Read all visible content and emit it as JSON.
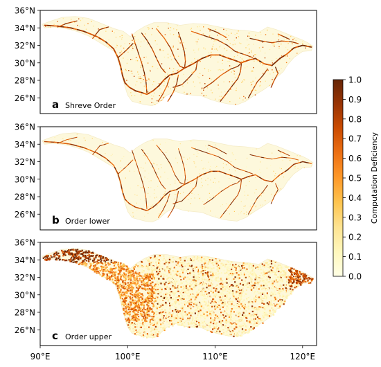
{
  "chart_data": {
    "type": "heatmap",
    "x_ticks": [
      90,
      100,
      110,
      120
    ],
    "x_tick_labels": [
      "90°E",
      "100°E",
      "110°E",
      "120°E"
    ],
    "xlim": [
      90,
      121.6
    ],
    "ylim": [
      24.2,
      36
    ],
    "y_ticks": [
      26,
      28,
      30,
      32,
      34,
      36
    ],
    "y_tick_labels": [
      "26°N",
      "28°N",
      "30°N",
      "32°N",
      "34°N",
      "36°N"
    ],
    "panels": [
      {
        "letter": "a",
        "label": "Shreve Order",
        "pattern": "rivers-strong"
      },
      {
        "letter": "b",
        "label": "Order lower",
        "pattern": "rivers-thin"
      },
      {
        "letter": "c",
        "label": "Order upper",
        "pattern": "upper-dense"
      }
    ],
    "colorbar": {
      "label": "Computation Deficiency",
      "min": 0.0,
      "max": 1.0,
      "ticks": [
        0.0,
        0.1,
        0.2,
        0.3,
        0.4,
        0.5,
        0.6,
        0.7,
        0.8,
        0.9,
        1.0
      ],
      "tick_labels": [
        "0.0",
        "0.1",
        "0.2",
        "0.3",
        "0.4",
        "0.5",
        "0.6",
        "0.7",
        "0.8",
        "0.9",
        "1.0"
      ],
      "colormap": "YlOrBr",
      "colors": [
        "#ffffe5",
        "#fff7bc",
        "#fee391",
        "#fec44f",
        "#fe9929",
        "#ec7014",
        "#cc4c02",
        "#993404",
        "#662506"
      ]
    },
    "basin_background": "#fdf8dc"
  }
}
